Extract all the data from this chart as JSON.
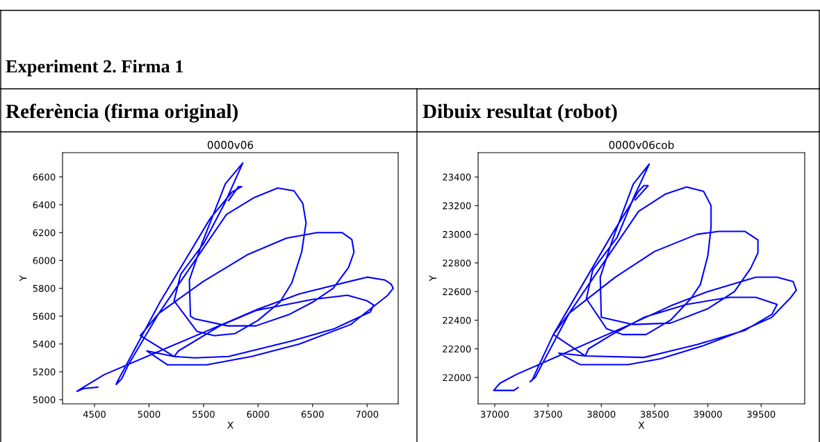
{
  "chart_data": [
    {
      "type": "line",
      "title": "0000v06",
      "xlabel": "X",
      "ylabel": "Y",
      "annotations": [
        "Experiment 2. Firma 1",
        "Referència (firma original)"
      ],
      "xlim": [
        4207,
        7285
      ],
      "ylim": [
        4970,
        6774
      ],
      "xticks": [
        4500,
        5000,
        5500,
        6000,
        6500,
        7000
      ],
      "yticks": [
        5000,
        5200,
        5400,
        5600,
        5800,
        6000,
        6200,
        6400,
        6600
      ],
      "grid": false,
      "legend": false,
      "series": [
        {
          "color": "#0000ff",
          "x": [
            4530,
            4400,
            4340,
            4400,
            4590,
            5700,
            6000,
            6380,
            7000,
            7160,
            7220,
            7240,
            7190,
            6850,
            6380,
            5940,
            5530,
            5170,
            4980,
            5230,
            5270,
            5650,
            5980,
            6500,
            6820,
            7000,
            7060,
            7030,
            6700,
            6300,
            5730,
            5420,
            5230,
            4920,
            5090,
            5500,
            5900,
            6260,
            6540,
            6770,
            6860,
            6880,
            6830,
            6690,
            6500,
            6280,
            5980,
            5720,
            5420,
            5380,
            5370,
            5480,
            5700,
            5860,
            5700,
            5500,
            5290,
            5230,
            5440,
            5600,
            5790,
            6000,
            6200,
            6310,
            6400,
            6440,
            6410,
            6330,
            6180,
            5960,
            5710,
            5090,
            4810,
            4750,
            4700,
            4710,
            5100,
            5560,
            5760,
            5850,
            5820,
            5730
          ],
          "values": [
            5090,
            5080,
            5060,
            5090,
            5180,
            5550,
            5650,
            5760,
            5880,
            5860,
            5830,
            5800,
            5750,
            5540,
            5400,
            5310,
            5250,
            5250,
            5350,
            5310,
            5350,
            5530,
            5640,
            5720,
            5750,
            5710,
            5680,
            5630,
            5510,
            5420,
            5310,
            5300,
            5310,
            5460,
            5620,
            5850,
            6040,
            6160,
            6200,
            6200,
            6150,
            6060,
            5950,
            5800,
            5700,
            5610,
            5530,
            5530,
            5580,
            5600,
            5860,
            6110,
            6550,
            6700,
            6420,
            6120,
            5900,
            5710,
            5490,
            5460,
            5475,
            5570,
            5700,
            5840,
            6060,
            6270,
            6410,
            6500,
            6520,
            6450,
            6330,
            5620,
            5250,
            5150,
            5110,
            5130,
            5700,
            6300,
            6490,
            6530,
            6530,
            6430
          ]
        }
      ]
    },
    {
      "type": "line",
      "title": "0000v06cob",
      "xlabel": "X",
      "ylabel": "Y",
      "annotations": [
        "Dibuix resultat (robot)"
      ],
      "xlim": [
        36844,
        39909
      ],
      "ylim": [
        21816,
        23570
      ],
      "xticks": [
        37000,
        37500,
        38000,
        38500,
        39000,
        39500
      ],
      "yticks": [
        22000,
        22200,
        22400,
        22600,
        22800,
        23000,
        23200,
        23400
      ],
      "grid": false,
      "legend": false,
      "series": [
        {
          "color": "#0000ff",
          "x": [
            37220,
            37180,
            36990,
            37050,
            37200,
            38300,
            38650,
            39000,
            39450,
            39650,
            39800,
            39830,
            39780,
            39600,
            39300,
            38950,
            38550,
            38250,
            37800,
            37600,
            37850,
            37880,
            38100,
            38400,
            38800,
            39200,
            39450,
            39650,
            39600,
            39350,
            38900,
            38400,
            37850,
            37550,
            37700,
            38130,
            38500,
            38900,
            39100,
            39350,
            39470,
            39470,
            39400,
            39250,
            39000,
            38650,
            38300,
            38000,
            37990,
            38100,
            38300,
            38450,
            38300,
            38150,
            37920,
            37860,
            38050,
            38200,
            38420,
            38650,
            38840,
            38930,
            39000,
            39030,
            39030,
            38960,
            38800,
            38600,
            38350,
            37700,
            37450,
            37380,
            37330,
            37350,
            37550,
            38100,
            38350,
            38400,
            38440,
            38320
          ],
          "values": [
            21930,
            21910,
            21910,
            21960,
            22020,
            22380,
            22500,
            22600,
            22700,
            22700,
            22670,
            22610,
            22560,
            22420,
            22320,
            22220,
            22130,
            22090,
            22090,
            22170,
            22150,
            22200,
            22300,
            22420,
            22510,
            22560,
            22560,
            22510,
            22440,
            22330,
            22230,
            22140,
            22150,
            22300,
            22450,
            22700,
            22880,
            23000,
            23020,
            23020,
            22960,
            22870,
            22760,
            22600,
            22480,
            22380,
            22370,
            22420,
            22700,
            22950,
            23350,
            23490,
            23250,
            22980,
            22750,
            22550,
            22340,
            22300,
            22300,
            22400,
            22550,
            22650,
            22850,
            23050,
            23200,
            23300,
            23330,
            23280,
            23160,
            22450,
            22100,
            22000,
            21970,
            21980,
            22300,
            23000,
            23300,
            23340,
            23340,
            23240
          ]
        }
      ]
    }
  ]
}
